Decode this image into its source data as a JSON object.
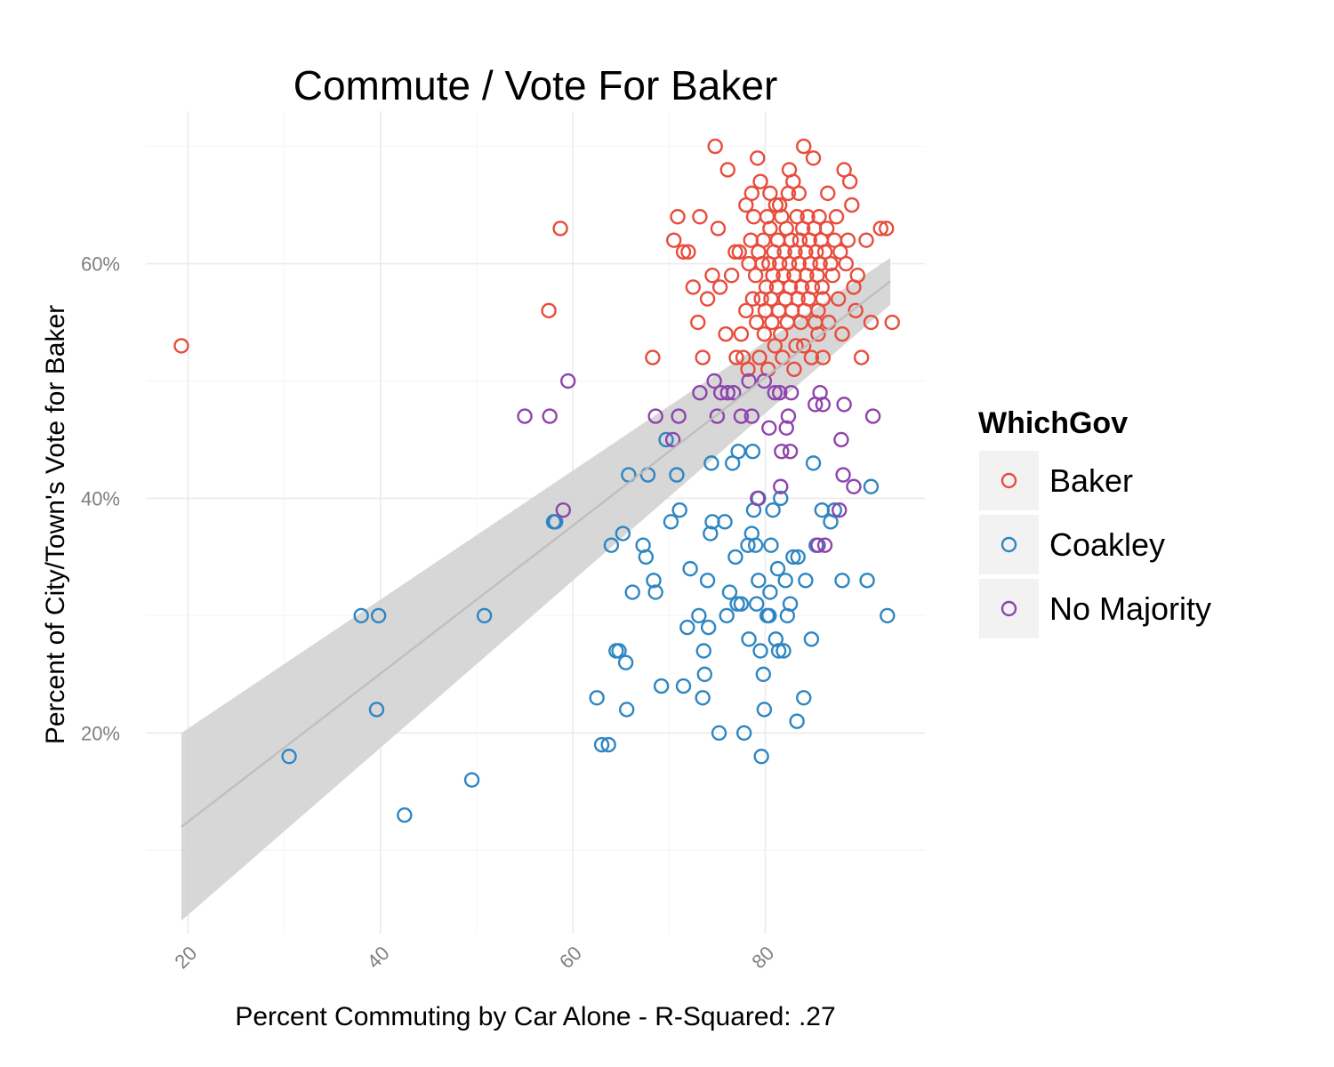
{
  "chart_data": {
    "type": "scatter",
    "title": "Commute / Vote For Baker",
    "xlabel": "Percent Commuting by Car Alone - R-Squared: .27",
    "ylabel": "Percent of City/Town's Vote for Baker",
    "xlim": [
      15.7,
      96.6
    ],
    "ylim": [
      0.029,
      0.73
    ],
    "x_ticks": [
      20,
      40,
      60,
      80
    ],
    "x_tick_labels": [
      "20",
      "40",
      "60",
      "80"
    ],
    "y_ticks": [
      0.2,
      0.4,
      0.6
    ],
    "y_tick_labels": [
      "20%",
      "40%",
      "60%"
    ],
    "grid": true,
    "legend": {
      "title": "WhichGov",
      "position": "right",
      "entries": [
        "Baker",
        "Coakley",
        "No Majority"
      ]
    },
    "colors": {
      "Baker": "#e74c3c",
      "Coakley": "#2e86c1",
      "No Majority": "#8e44ad",
      "trend_line": "#bdbdbd",
      "confidence_band": "#d3d3d3"
    },
    "trend": {
      "x": [
        19.3,
        93.0
      ],
      "y": [
        0.12,
        0.585
      ],
      "lower": [
        0.04,
        0.565
      ],
      "upper": [
        0.2,
        0.605
      ]
    },
    "series": [
      {
        "name": "Baker",
        "points": [
          [
            19.3,
            0.53
          ],
          [
            57.5,
            0.56
          ],
          [
            58.7,
            0.63
          ],
          [
            68.3,
            0.52
          ],
          [
            70.5,
            0.62
          ],
          [
            70.9,
            0.64
          ],
          [
            71.5,
            0.61
          ],
          [
            72.0,
            0.61
          ],
          [
            72.5,
            0.58
          ],
          [
            73.0,
            0.55
          ],
          [
            73.2,
            0.64
          ],
          [
            73.5,
            0.52
          ],
          [
            74.0,
            0.57
          ],
          [
            74.5,
            0.59
          ],
          [
            74.8,
            0.7
          ],
          [
            75.1,
            0.63
          ],
          [
            75.3,
            0.58
          ],
          [
            75.9,
            0.54
          ],
          [
            76.1,
            0.68
          ],
          [
            76.5,
            0.59
          ],
          [
            76.9,
            0.61
          ],
          [
            77.0,
            0.52
          ],
          [
            77.3,
            0.61
          ],
          [
            77.5,
            0.54
          ],
          [
            77.7,
            0.52
          ],
          [
            78.0,
            0.65
          ],
          [
            78.0,
            0.56
          ],
          [
            78.2,
            0.51
          ],
          [
            78.3,
            0.6
          ],
          [
            78.5,
            0.62
          ],
          [
            78.6,
            0.66
          ],
          [
            78.7,
            0.57
          ],
          [
            78.8,
            0.64
          ],
          [
            79.0,
            0.59
          ],
          [
            79.1,
            0.55
          ],
          [
            79.2,
            0.69
          ],
          [
            79.3,
            0.61
          ],
          [
            79.4,
            0.52
          ],
          [
            79.5,
            0.67
          ],
          [
            79.6,
            0.57
          ],
          [
            79.7,
            0.6
          ],
          [
            79.8,
            0.62
          ],
          [
            79.9,
            0.54
          ],
          [
            80.0,
            0.56
          ],
          [
            80.1,
            0.58
          ],
          [
            80.2,
            0.64
          ],
          [
            80.3,
            0.51
          ],
          [
            80.4,
            0.6
          ],
          [
            80.5,
            0.63
          ],
          [
            80.6,
            0.57
          ],
          [
            80.7,
            0.55
          ],
          [
            80.8,
            0.59
          ],
          [
            80.9,
            0.61
          ],
          [
            81.0,
            0.53
          ],
          [
            81.1,
            0.65
          ],
          [
            81.2,
            0.58
          ],
          [
            81.3,
            0.62
          ],
          [
            81.4,
            0.56
          ],
          [
            81.5,
            0.6
          ],
          [
            81.6,
            0.54
          ],
          [
            81.7,
            0.64
          ],
          [
            81.8,
            0.52
          ],
          [
            81.9,
            0.59
          ],
          [
            82.0,
            0.61
          ],
          [
            82.1,
            0.57
          ],
          [
            82.2,
            0.63
          ],
          [
            82.3,
            0.55
          ],
          [
            82.4,
            0.66
          ],
          [
            82.5,
            0.6
          ],
          [
            82.6,
            0.58
          ],
          [
            82.7,
            0.62
          ],
          [
            82.8,
            0.56
          ],
          [
            82.9,
            0.67
          ],
          [
            83.0,
            0.59
          ],
          [
            83.1,
            0.61
          ],
          [
            83.2,
            0.53
          ],
          [
            83.3,
            0.64
          ],
          [
            83.4,
            0.57
          ],
          [
            83.5,
            0.6
          ],
          [
            83.6,
            0.62
          ],
          [
            83.7,
            0.55
          ],
          [
            83.8,
            0.58
          ],
          [
            83.9,
            0.63
          ],
          [
            84.0,
            0.7
          ],
          [
            84.1,
            0.56
          ],
          [
            84.2,
            0.61
          ],
          [
            84.3,
            0.59
          ],
          [
            84.4,
            0.64
          ],
          [
            84.5,
            0.57
          ],
          [
            84.6,
            0.62
          ],
          [
            84.7,
            0.6
          ],
          [
            84.8,
            0.52
          ],
          [
            84.9,
            0.58
          ],
          [
            85.0,
            0.69
          ],
          [
            85.1,
            0.63
          ],
          [
            85.2,
            0.55
          ],
          [
            85.3,
            0.61
          ],
          [
            85.4,
            0.59
          ],
          [
            85.5,
            0.56
          ],
          [
            85.6,
            0.64
          ],
          [
            85.7,
            0.6
          ],
          [
            85.8,
            0.62
          ],
          [
            85.9,
            0.58
          ],
          [
            86.0,
            0.57
          ],
          [
            86.2,
            0.61
          ],
          [
            86.4,
            0.63
          ],
          [
            86.6,
            0.55
          ],
          [
            86.8,
            0.6
          ],
          [
            87.0,
            0.59
          ],
          [
            87.2,
            0.62
          ],
          [
            87.4,
            0.64
          ],
          [
            87.6,
            0.57
          ],
          [
            87.8,
            0.61
          ],
          [
            88.0,
            0.54
          ],
          [
            88.2,
            0.68
          ],
          [
            88.4,
            0.6
          ],
          [
            88.6,
            0.62
          ],
          [
            88.8,
            0.67
          ],
          [
            89.0,
            0.65
          ],
          [
            89.2,
            0.58
          ],
          [
            89.4,
            0.56
          ],
          [
            89.6,
            0.59
          ],
          [
            90.0,
            0.52
          ],
          [
            90.5,
            0.62
          ],
          [
            91.0,
            0.55
          ],
          [
            92.0,
            0.63
          ],
          [
            92.6,
            0.63
          ],
          [
            93.2,
            0.55
          ],
          [
            83.5,
            0.66
          ],
          [
            80.5,
            0.66
          ],
          [
            81.5,
            0.65
          ],
          [
            82.5,
            0.68
          ],
          [
            86.5,
            0.66
          ],
          [
            85.5,
            0.54
          ],
          [
            86.0,
            0.52
          ],
          [
            84.0,
            0.53
          ],
          [
            83.0,
            0.51
          ]
        ]
      },
      {
        "name": "Coakley",
        "points": [
          [
            30.5,
            0.18
          ],
          [
            38.0,
            0.3
          ],
          [
            39.8,
            0.3
          ],
          [
            39.6,
            0.22
          ],
          [
            42.5,
            0.13
          ],
          [
            49.5,
            0.16
          ],
          [
            50.8,
            0.3
          ],
          [
            58.0,
            0.38
          ],
          [
            58.2,
            0.38
          ],
          [
            62.5,
            0.23
          ],
          [
            63.0,
            0.19
          ],
          [
            63.7,
            0.19
          ],
          [
            64.0,
            0.36
          ],
          [
            64.5,
            0.27
          ],
          [
            64.8,
            0.27
          ],
          [
            65.2,
            0.37
          ],
          [
            65.5,
            0.26
          ],
          [
            65.6,
            0.22
          ],
          [
            65.8,
            0.42
          ],
          [
            66.2,
            0.32
          ],
          [
            67.3,
            0.36
          ],
          [
            67.6,
            0.35
          ],
          [
            67.8,
            0.42
          ],
          [
            68.4,
            0.33
          ],
          [
            68.6,
            0.32
          ],
          [
            69.2,
            0.24
          ],
          [
            69.7,
            0.45
          ],
          [
            70.2,
            0.38
          ],
          [
            70.8,
            0.42
          ],
          [
            71.1,
            0.39
          ],
          [
            71.5,
            0.24
          ],
          [
            71.9,
            0.29
          ],
          [
            72.2,
            0.34
          ],
          [
            73.1,
            0.3
          ],
          [
            73.5,
            0.23
          ],
          [
            73.6,
            0.27
          ],
          [
            73.7,
            0.25
          ],
          [
            74.0,
            0.33
          ],
          [
            74.1,
            0.29
          ],
          [
            74.3,
            0.37
          ],
          [
            74.4,
            0.43
          ],
          [
            74.5,
            0.38
          ],
          [
            75.2,
            0.2
          ],
          [
            75.8,
            0.38
          ],
          [
            76.0,
            0.3
          ],
          [
            76.3,
            0.32
          ],
          [
            76.6,
            0.43
          ],
          [
            76.9,
            0.35
          ],
          [
            77.1,
            0.31
          ],
          [
            77.2,
            0.44
          ],
          [
            77.5,
            0.31
          ],
          [
            77.8,
            0.2
          ],
          [
            78.2,
            0.36
          ],
          [
            78.3,
            0.28
          ],
          [
            78.6,
            0.37
          ],
          [
            78.7,
            0.44
          ],
          [
            78.8,
            0.39
          ],
          [
            79.0,
            0.36
          ],
          [
            79.1,
            0.31
          ],
          [
            79.3,
            0.33
          ],
          [
            79.3,
            0.4
          ],
          [
            79.5,
            0.27
          ],
          [
            79.6,
            0.18
          ],
          [
            79.8,
            0.25
          ],
          [
            79.9,
            0.22
          ],
          [
            80.2,
            0.3
          ],
          [
            80.4,
            0.3
          ],
          [
            80.5,
            0.32
          ],
          [
            80.6,
            0.36
          ],
          [
            80.8,
            0.39
          ],
          [
            81.1,
            0.28
          ],
          [
            81.3,
            0.34
          ],
          [
            81.4,
            0.27
          ],
          [
            81.6,
            0.4
          ],
          [
            81.9,
            0.27
          ],
          [
            82.1,
            0.33
          ],
          [
            82.3,
            0.3
          ],
          [
            82.6,
            0.31
          ],
          [
            82.9,
            0.35
          ],
          [
            83.3,
            0.21
          ],
          [
            83.4,
            0.35
          ],
          [
            84.0,
            0.23
          ],
          [
            84.2,
            0.33
          ],
          [
            84.8,
            0.28
          ],
          [
            85.0,
            0.43
          ],
          [
            85.3,
            0.36
          ],
          [
            85.9,
            0.39
          ],
          [
            86.8,
            0.38
          ],
          [
            87.2,
            0.39
          ],
          [
            88.0,
            0.33
          ],
          [
            90.6,
            0.33
          ],
          [
            91.0,
            0.41
          ],
          [
            92.7,
            0.3
          ]
        ]
      },
      {
        "name": "No Majority",
        "points": [
          [
            55.0,
            0.47
          ],
          [
            57.6,
            0.47
          ],
          [
            59.0,
            0.39
          ],
          [
            59.5,
            0.5
          ],
          [
            68.6,
            0.47
          ],
          [
            70.4,
            0.45
          ],
          [
            71.0,
            0.47
          ],
          [
            73.2,
            0.49
          ],
          [
            74.7,
            0.5
          ],
          [
            75.0,
            0.47
          ],
          [
            75.4,
            0.49
          ],
          [
            76.1,
            0.49
          ],
          [
            76.7,
            0.49
          ],
          [
            77.5,
            0.47
          ],
          [
            78.3,
            0.5
          ],
          [
            78.6,
            0.47
          ],
          [
            79.2,
            0.4
          ],
          [
            79.9,
            0.5
          ],
          [
            80.4,
            0.46
          ],
          [
            81.0,
            0.49
          ],
          [
            81.5,
            0.49
          ],
          [
            81.6,
            0.41
          ],
          [
            81.7,
            0.44
          ],
          [
            82.2,
            0.46
          ],
          [
            82.4,
            0.47
          ],
          [
            82.6,
            0.44
          ],
          [
            82.7,
            0.49
          ],
          [
            85.2,
            0.48
          ],
          [
            85.7,
            0.49
          ],
          [
            86.0,
            0.48
          ],
          [
            85.5,
            0.36
          ],
          [
            86.2,
            0.36
          ],
          [
            87.7,
            0.39
          ],
          [
            87.9,
            0.45
          ],
          [
            88.1,
            0.42
          ],
          [
            88.2,
            0.48
          ],
          [
            89.2,
            0.41
          ],
          [
            91.2,
            0.47
          ]
        ]
      }
    ]
  }
}
